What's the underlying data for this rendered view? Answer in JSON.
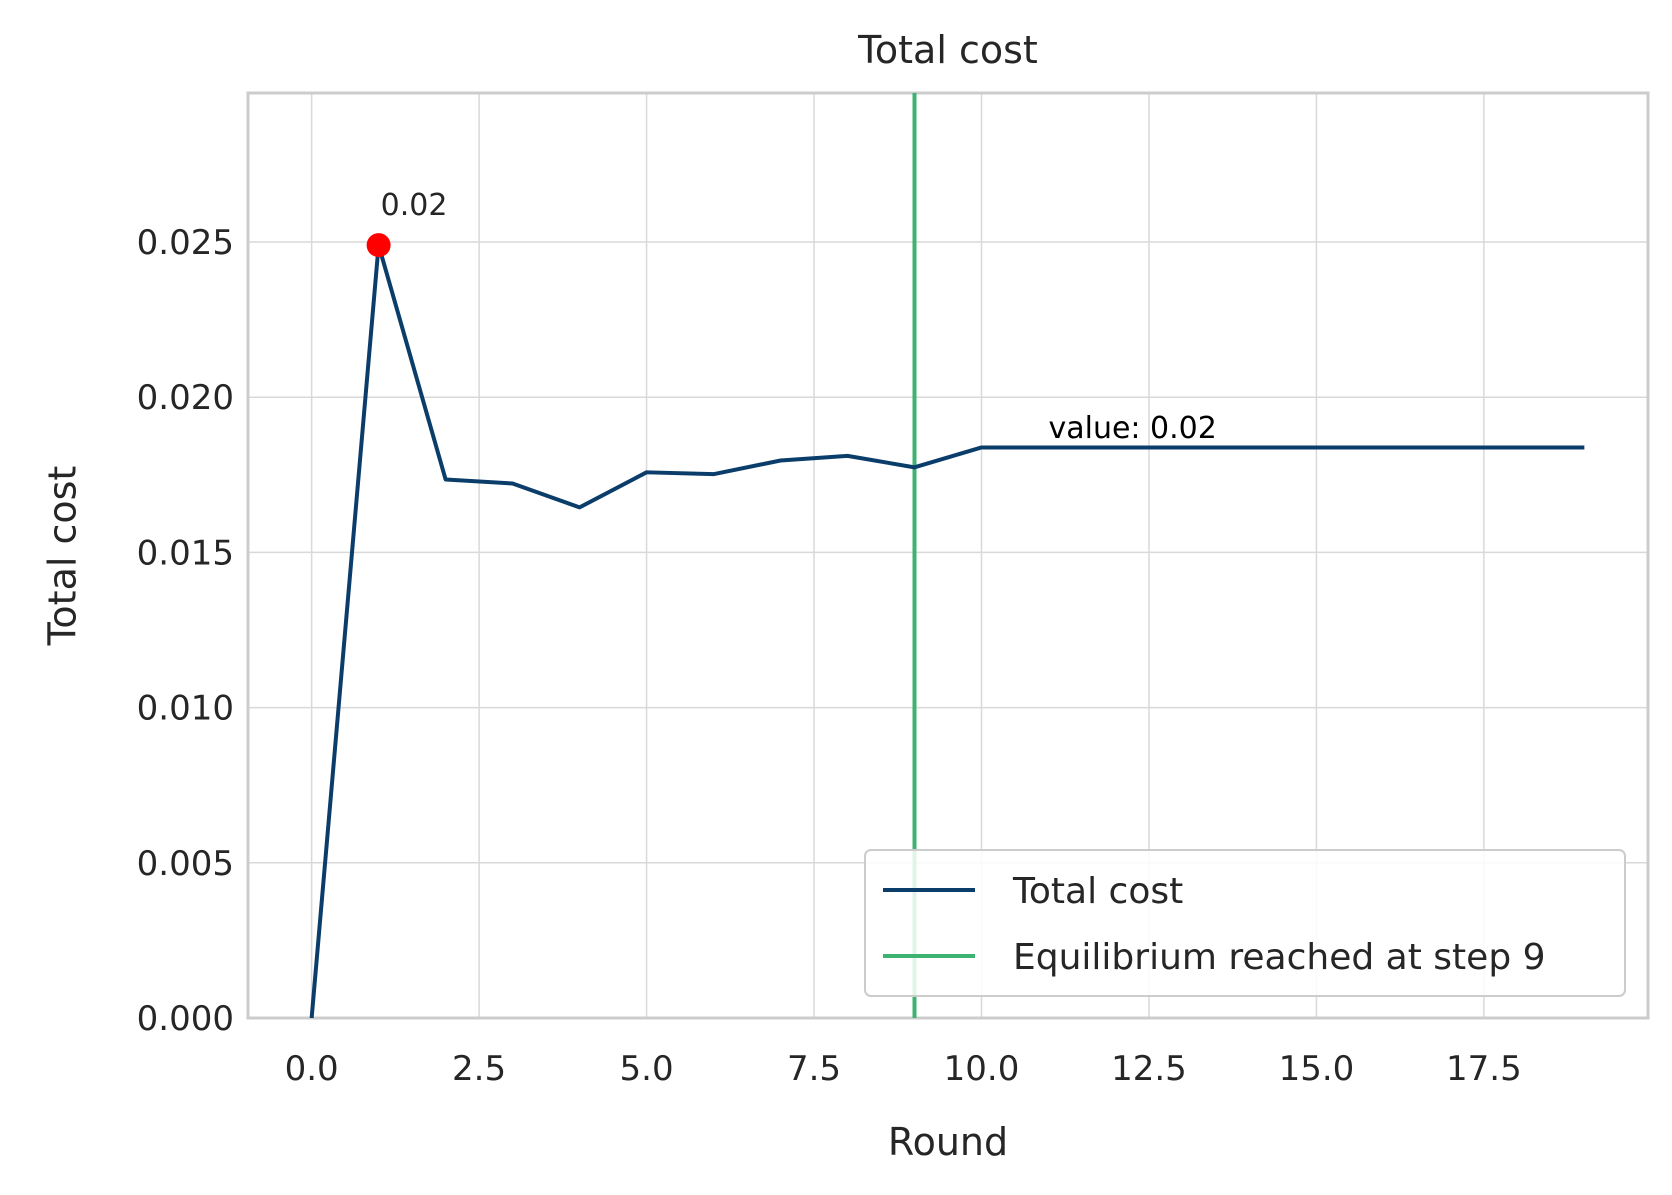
{
  "chart_data": {
    "type": "line",
    "title": "Total cost",
    "xlabel": "Round",
    "ylabel": "Total cost",
    "xlim": [
      -0.95,
      19.95
    ],
    "ylim": [
      0,
      0.0298
    ],
    "grid": true,
    "x_ticks": [
      "0.0",
      "2.5",
      "5.0",
      "7.5",
      "10.0",
      "12.5",
      "15.0",
      "17.5"
    ],
    "x_tick_values": [
      0,
      2.5,
      5,
      7.5,
      10,
      12.5,
      15,
      17.5
    ],
    "y_ticks": [
      "0.000",
      "0.005",
      "0.010",
      "0.015",
      "0.020",
      "0.025"
    ],
    "y_tick_values": [
      0,
      0.005,
      0.01,
      0.015,
      0.02,
      0.025
    ],
    "series": [
      {
        "name": "Total cost",
        "color": "#0b3d6b",
        "x": [
          0,
          1,
          2,
          3,
          4,
          5,
          6,
          7,
          8,
          9,
          10,
          11,
          12,
          13,
          14,
          15,
          16,
          17,
          18,
          19
        ],
        "y": [
          0.0,
          0.0249,
          0.01735,
          0.01722,
          0.01645,
          0.01758,
          0.01752,
          0.01796,
          0.01811,
          0.01774,
          0.01838,
          0.01838,
          0.01838,
          0.01838,
          0.01838,
          0.01838,
          0.01838,
          0.01838,
          0.01838,
          0.01838
        ]
      }
    ],
    "vline": {
      "x": 9,
      "name": "Equilibrium reached at step 9",
      "color": "#3cb371"
    },
    "highlight_point": {
      "x": 1,
      "y": 0.0249,
      "color": "#ff0000",
      "label": "0.02"
    },
    "value_annotation": {
      "x": 11,
      "y": 0.019,
      "text": "value: 0.02",
      "color": "#000000"
    },
    "legend": {
      "position": "lower-right",
      "entries": [
        "Total cost",
        "Equilibrium reached at step 9"
      ]
    }
  }
}
